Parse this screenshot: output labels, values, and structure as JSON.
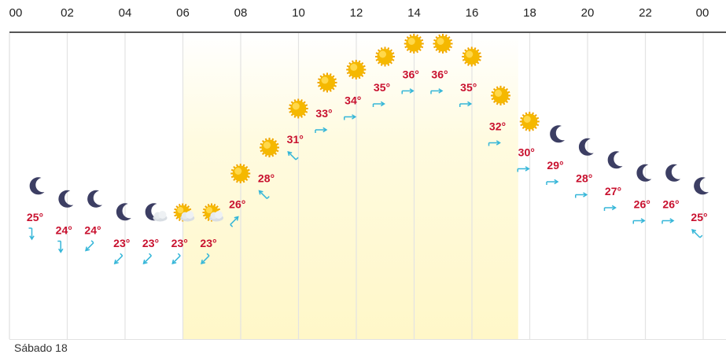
{
  "chart_data": {
    "type": "line",
    "hour_axis": [
      "00",
      "02",
      "04",
      "06",
      "08",
      "10",
      "12",
      "14",
      "16",
      "18",
      "20",
      "22",
      "00"
    ],
    "x": [
      0,
      1,
      2,
      3,
      4,
      5,
      6,
      7,
      8,
      9,
      10,
      11,
      12,
      13,
      14,
      15,
      16,
      17,
      18,
      19,
      20,
      21,
      22,
      23
    ],
    "series": [
      {
        "values": [
          25,
          24,
          24,
          23,
          23,
          23,
          23,
          26,
          28,
          31,
          33,
          34,
          35,
          36,
          36,
          35,
          32,
          30,
          29,
          28,
          27,
          26,
          26,
          25
        ]
      }
    ],
    "temperature_labels": [
      "25°",
      "24°",
      "24°",
      "23°",
      "23°",
      "23°",
      "23°",
      "26°",
      "28°",
      "31°",
      "33°",
      "34°",
      "35°",
      "36°",
      "36°",
      "35°",
      "32°",
      "30°",
      "29°",
      "28°",
      "27°",
      "26°",
      "26°",
      "25°"
    ],
    "weather_icons": [
      "moon-icon",
      "moon-icon",
      "moon-icon",
      "moon-icon",
      "moon-cloud-icon",
      "sun-cloud-icon",
      "sun-cloud-icon",
      "sun-icon",
      "sun-icon",
      "sun-icon",
      "sun-icon",
      "sun-icon",
      "sun-icon",
      "sun-icon",
      "sun-icon",
      "sun-icon",
      "sun-icon",
      "sun-icon",
      "moon-icon",
      "moon-icon",
      "moon-icon",
      "moon-icon",
      "moon-icon",
      "moon-icon"
    ],
    "wind_direction_deg": [
      180,
      180,
      225,
      225,
      225,
      225,
      225,
      45,
      315,
      315,
      90,
      90,
      90,
      90,
      90,
      90,
      90,
      90,
      90,
      90,
      90,
      90,
      90,
      315
    ],
    "daylight_hours": [
      6,
      17.6
    ],
    "grid": true,
    "colors": {
      "temperature": "#c8102e",
      "wind": "#35b6d8",
      "moon": "#3c3e63",
      "sun": "#f5b800",
      "daylight": "#fffbe0"
    }
  },
  "footer": {
    "day_label": "Sábado 18"
  }
}
